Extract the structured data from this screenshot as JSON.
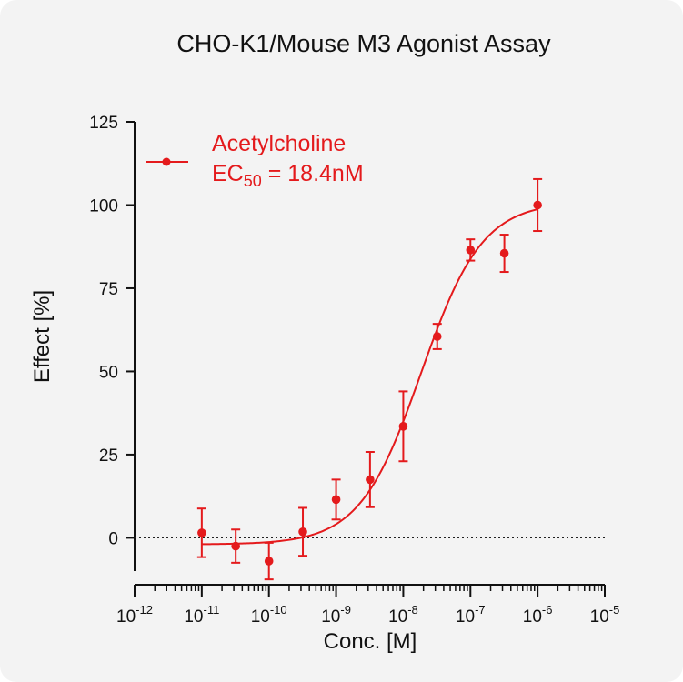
{
  "chart_data": {
    "type": "scatter",
    "title": "CHO-K1/Mouse M3 Agonist Assay",
    "xlabel": "Conc. [M]",
    "ylabel": "Effect  [%]",
    "x_scale": "log",
    "xlim": [
      1e-12,
      1e-05
    ],
    "ylim": [
      -10,
      125
    ],
    "y_ticks": [
      0,
      25,
      50,
      75,
      100,
      125
    ],
    "x_tick_labels": [
      {
        "base": "10",
        "exp": "-12"
      },
      {
        "base": "10",
        "exp": "-11"
      },
      {
        "base": "10",
        "exp": "-10"
      },
      {
        "base": "10",
        "exp": "-9"
      },
      {
        "base": "10",
        "exp": "-8"
      },
      {
        "base": "10",
        "exp": "-7"
      },
      {
        "base": "10",
        "exp": "-6"
      },
      {
        "base": "10",
        "exp": "-5"
      }
    ],
    "reference_line": {
      "y": 0,
      "style": "dotted"
    },
    "legend_placement": "top-left",
    "series": [
      {
        "name": "Acetylcholine",
        "color": "#e41a1c",
        "ec50_label": {
          "prefix": "EC",
          "sub": "50",
          "suffix": " = 18.4nM"
        },
        "points": [
          {
            "x": 1e-11,
            "y": 1.5,
            "err": 7.3
          },
          {
            "x": 3.2e-11,
            "y": -2.5,
            "err": 5.0
          },
          {
            "x": 1e-10,
            "y": -7.0,
            "err": 5.5
          },
          {
            "x": 3.2e-10,
            "y": 1.8,
            "err": 7.2
          },
          {
            "x": 1e-09,
            "y": 11.5,
            "err": 6.0
          },
          {
            "x": 3.2e-09,
            "y": 17.5,
            "err": 8.3
          },
          {
            "x": 1e-08,
            "y": 33.5,
            "err": 10.5
          },
          {
            "x": 3.2e-08,
            "y": 60.5,
            "err": 3.8
          },
          {
            "x": 1e-07,
            "y": 86.5,
            "err": 3.2
          },
          {
            "x": 3.2e-07,
            "y": 85.5,
            "err": 5.6
          },
          {
            "x": 1e-06,
            "y": 100.0,
            "err": 7.8
          }
        ],
        "fit": {
          "bottom": -2,
          "top": 101,
          "ec50": 1.84e-08,
          "hill": 0.95,
          "x_range": [
            1e-11,
            1e-06
          ]
        }
      }
    ]
  }
}
